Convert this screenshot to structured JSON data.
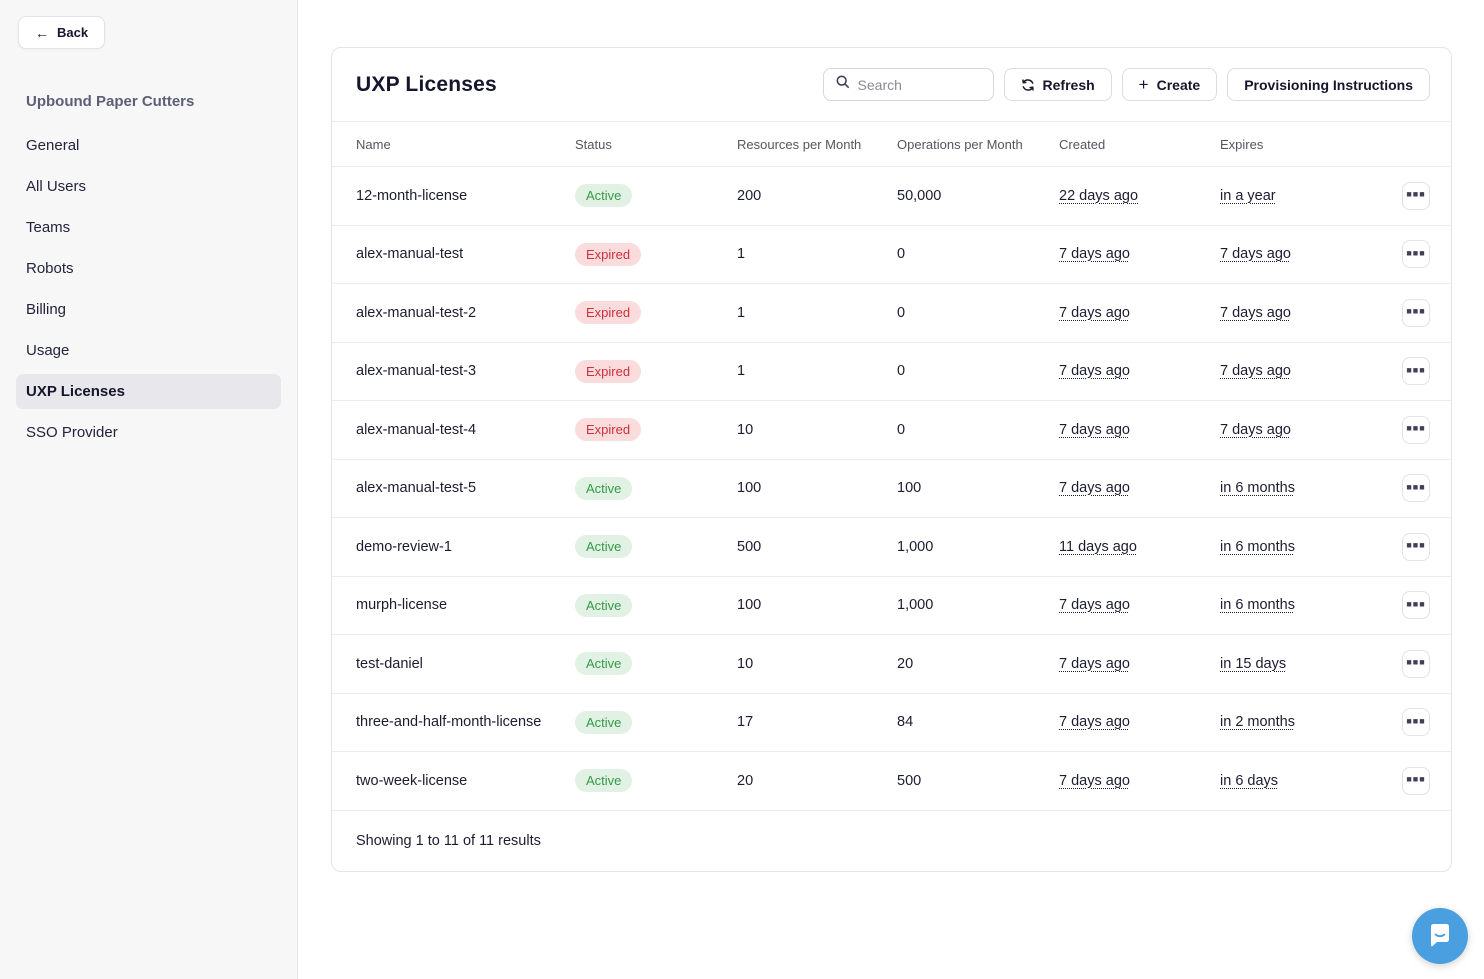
{
  "sidebar": {
    "back_label": "Back",
    "org_name": "Upbound Paper Cutters",
    "items": [
      {
        "label": "General",
        "active": false
      },
      {
        "label": "All Users",
        "active": false
      },
      {
        "label": "Teams",
        "active": false
      },
      {
        "label": "Robots",
        "active": false
      },
      {
        "label": "Billing",
        "active": false
      },
      {
        "label": "Usage",
        "active": false
      },
      {
        "label": "UXP Licenses",
        "active": true
      },
      {
        "label": "SSO Provider",
        "active": false
      }
    ]
  },
  "header": {
    "title": "UXP Licenses",
    "search_placeholder": "Search",
    "search_value": "",
    "refresh_label": "Refresh",
    "create_label": "Create",
    "provisioning_label": "Provisioning Instructions"
  },
  "table": {
    "columns": [
      "Name",
      "Status",
      "Resources per Month",
      "Operations per Month",
      "Created",
      "Expires"
    ],
    "rows": [
      {
        "name": "12-month-license",
        "status": "Active",
        "resources": "200",
        "operations": "50,000",
        "created": "22 days ago",
        "expires": "in a year"
      },
      {
        "name": "alex-manual-test",
        "status": "Expired",
        "resources": "1",
        "operations": "0",
        "created": "7 days ago",
        "expires": "7 days ago"
      },
      {
        "name": "alex-manual-test-2",
        "status": "Expired",
        "resources": "1",
        "operations": "0",
        "created": "7 days ago",
        "expires": "7 days ago"
      },
      {
        "name": "alex-manual-test-3",
        "status": "Expired",
        "resources": "1",
        "operations": "0",
        "created": "7 days ago",
        "expires": "7 days ago"
      },
      {
        "name": "alex-manual-test-4",
        "status": "Expired",
        "resources": "10",
        "operations": "0",
        "created": "7 days ago",
        "expires": "7 days ago"
      },
      {
        "name": "alex-manual-test-5",
        "status": "Active",
        "resources": "100",
        "operations": "100",
        "created": "7 days ago",
        "expires": "in 6 months"
      },
      {
        "name": "demo-review-1",
        "status": "Active",
        "resources": "500",
        "operations": "1,000",
        "created": "11 days ago",
        "expires": "in 6 months"
      },
      {
        "name": "murph-license",
        "status": "Active",
        "resources": "100",
        "operations": "1,000",
        "created": "7 days ago",
        "expires": "in 6 months"
      },
      {
        "name": "test-daniel",
        "status": "Active",
        "resources": "10",
        "operations": "20",
        "created": "7 days ago",
        "expires": "in 15 days"
      },
      {
        "name": "three-and-half-month-license",
        "status": "Active",
        "resources": "17",
        "operations": "84",
        "created": "7 days ago",
        "expires": "in 2 months"
      },
      {
        "name": "two-week-license",
        "status": "Active",
        "resources": "20",
        "operations": "500",
        "created": "7 days ago",
        "expires": "in 6 days"
      }
    ],
    "footer_text": "Showing 1 to 11 of 11 results"
  },
  "colors": {
    "active_badge_bg": "#e1f1e4",
    "active_badge_text": "#349a48",
    "expired_badge_bg": "#fbdcdc",
    "expired_badge_text": "#ce2e3d",
    "chat_launcher_blue": "#4a9fe0"
  },
  "icons": [
    "back-arrow-icon",
    "search-icon",
    "refresh-icon",
    "plus-icon",
    "ellipsis-icon",
    "chat-bubble-icon"
  ]
}
